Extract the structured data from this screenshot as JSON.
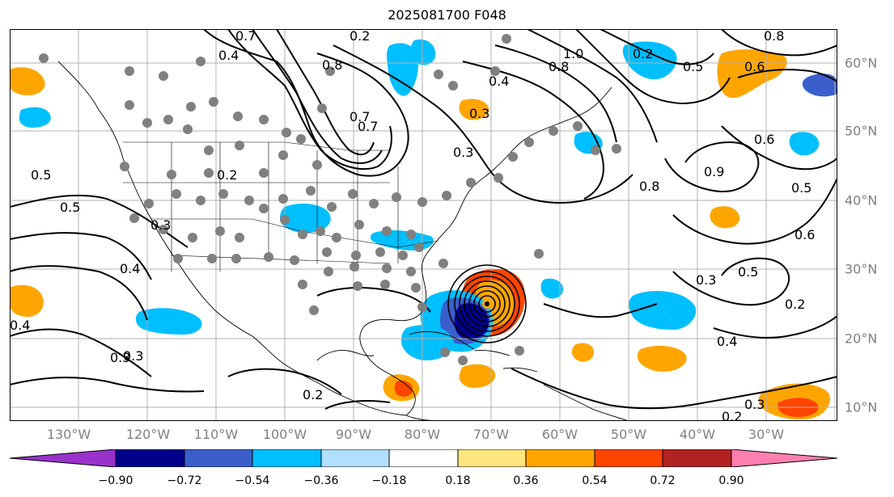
{
  "title": "2025081700 F048",
  "colors": {
    "gridline": "#b0b0b0",
    "contour": "#000000",
    "tick_label": "#808080"
  },
  "map": {
    "contour_labels": [
      "0.7",
      "0.4",
      "0.2",
      "0.8",
      "0.7",
      "0.4",
      "0.3",
      "1.0",
      "0.8",
      "0.2",
      "0.5",
      "0.6",
      "0.8",
      "0.3",
      "0.5",
      "0.2",
      "0.2",
      "0.3",
      "0.5",
      "0.6",
      "0.5",
      "0.3",
      "0.4",
      "0.4",
      "0.3",
      "0.6",
      "0.9",
      "0.8",
      "0.7",
      "0.5",
      "0.3",
      "0.2",
      "0.4",
      "0.3",
      "0.2"
    ]
  },
  "lon_ticks": [
    "130°W",
    "120°W",
    "110°W",
    "100°W",
    "90°W",
    "80°W",
    "70°W",
    "60°W",
    "50°W",
    "40°W",
    "30°W"
  ],
  "lat_ticks": [
    "60°N",
    "50°N",
    "40°N",
    "30°N",
    "20°N",
    "10°N"
  ],
  "colorbar": {
    "colors": [
      "#9932cc",
      "#00008b",
      "#3a5fcd",
      "#00bfff",
      "#b2dfff",
      "#ffffff",
      "#ffe680",
      "#ffa500",
      "#ff4500",
      "#b22222",
      "#ff7fb0"
    ],
    "tick_labels": [
      "−0.90",
      "−0.72",
      "−0.54",
      "−0.36",
      "−0.18",
      "0.18",
      "0.36",
      "0.54",
      "0.72",
      "0.90"
    ]
  }
}
